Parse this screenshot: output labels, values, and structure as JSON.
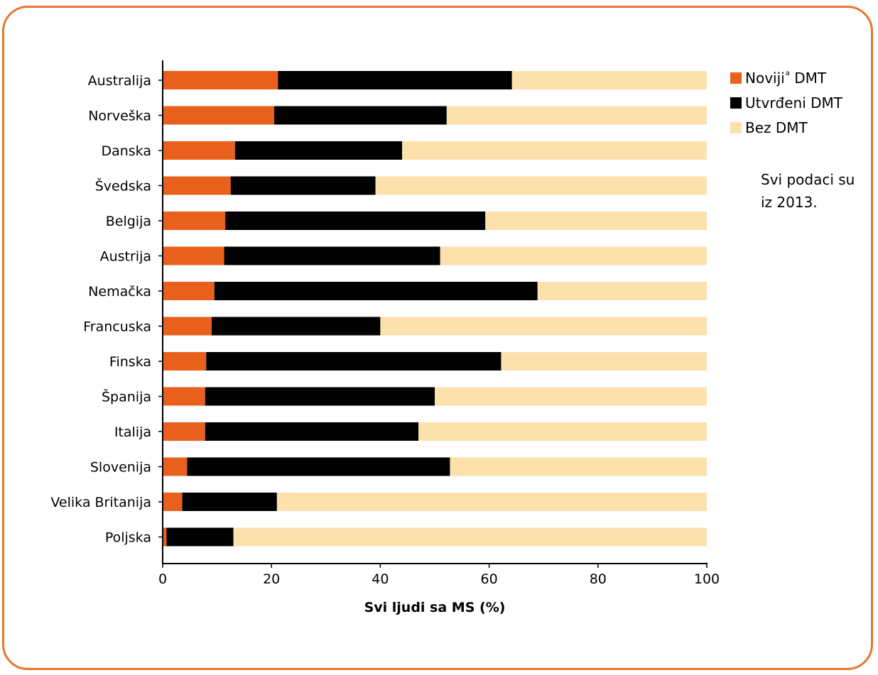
{
  "chart_data": {
    "type": "bar",
    "orientation": "horizontal",
    "stacked": true,
    "categories": [
      "Australija",
      "Norveška",
      "Danska",
      "Švedska",
      "Belgija",
      "Austrija",
      "Nemačka",
      "Francuska",
      "Finska",
      "Španija",
      "Italija",
      "Slovenija",
      "Velika Britanija",
      "Poljska"
    ],
    "series": [
      {
        "name": "Noviji DMT",
        "name_sup": "a",
        "color": "#e8601c",
        "values": [
          21.2,
          20.5,
          13.3,
          12.5,
          11.5,
          11.3,
          9.5,
          9.0,
          8.0,
          7.8,
          7.8,
          4.5,
          3.6,
          0.7
        ]
      },
      {
        "name": "Utvrđeni DMT",
        "color": "#000000",
        "values": [
          43.0,
          31.7,
          30.7,
          26.6,
          47.8,
          39.7,
          59.4,
          31.0,
          54.2,
          42.2,
          39.2,
          48.3,
          17.4,
          12.3
        ]
      },
      {
        "name": "Bez DMT",
        "color": "#fde1ad",
        "values": [
          35.8,
          47.8,
          56.0,
          60.9,
          40.7,
          49.0,
          31.1,
          60.0,
          37.8,
          50.0,
          53.0,
          47.2,
          79.0,
          87.0
        ]
      }
    ],
    "xlabel": "Svi ljudi sa MS (%)",
    "ylabel": "",
    "xlim": [
      0,
      100
    ],
    "xticks": [
      0,
      20,
      40,
      60,
      80,
      100
    ],
    "grid": false,
    "legend_position": "top-right",
    "note": [
      "Svi podaci su",
      "iz 2013."
    ]
  },
  "colors": {
    "frame": "#e8762d"
  }
}
